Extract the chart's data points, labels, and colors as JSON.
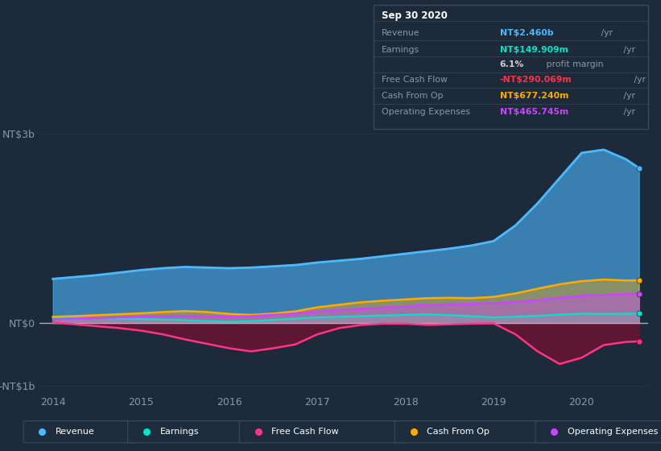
{
  "bg_color": "#1c2a3a",
  "plot_bg_color": "#1c2a3a",
  "x_years": [
    2014.0,
    2014.25,
    2014.5,
    2014.75,
    2015.0,
    2015.25,
    2015.5,
    2015.75,
    2016.0,
    2016.25,
    2016.5,
    2016.75,
    2017.0,
    2017.25,
    2017.5,
    2017.75,
    2018.0,
    2018.25,
    2018.5,
    2018.75,
    2019.0,
    2019.25,
    2019.5,
    2019.75,
    2020.0,
    2020.25,
    2020.5,
    2020.65
  ],
  "revenue": [
    700,
    730,
    760,
    800,
    840,
    870,
    890,
    880,
    870,
    880,
    900,
    920,
    960,
    990,
    1020,
    1060,
    1100,
    1140,
    1180,
    1230,
    1300,
    1550,
    1900,
    2300,
    2700,
    2750,
    2600,
    2460
  ],
  "earnings": [
    90,
    85,
    80,
    70,
    65,
    55,
    45,
    30,
    20,
    30,
    50,
    70,
    90,
    100,
    110,
    120,
    130,
    140,
    125,
    110,
    90,
    100,
    115,
    135,
    150,
    145,
    148,
    150
  ],
  "free_cash_flow": [
    10,
    -20,
    -50,
    -80,
    -120,
    -180,
    -260,
    -330,
    -400,
    -450,
    -400,
    -340,
    -180,
    -80,
    -30,
    -10,
    -10,
    -30,
    -20,
    -10,
    -5,
    -180,
    -450,
    -650,
    -550,
    -350,
    -300,
    -290
  ],
  "cash_from_op": [
    100,
    110,
    125,
    140,
    155,
    175,
    190,
    175,
    145,
    130,
    150,
    185,
    250,
    290,
    330,
    355,
    375,
    395,
    400,
    395,
    415,
    470,
    545,
    615,
    665,
    690,
    675,
    677
  ],
  "op_expenses": [
    60,
    70,
    80,
    90,
    100,
    110,
    115,
    110,
    100,
    110,
    130,
    150,
    185,
    205,
    225,
    245,
    265,
    285,
    295,
    305,
    315,
    335,
    365,
    400,
    430,
    445,
    460,
    466
  ],
  "colors": {
    "revenue": "#4db8ff",
    "earnings": "#00e5cc",
    "free_cash_flow": "#ff3388",
    "cash_from_op": "#ffaa00",
    "op_expenses": "#cc44ff"
  },
  "fcf_fill_color": "#7a1030",
  "ylim": [
    -1100,
    3300
  ],
  "xlim": [
    2013.85,
    2020.75
  ],
  "yticks": [
    -1000,
    0,
    3000
  ],
  "ytick_labels": [
    "-NT$1b",
    "NT$0",
    "NT$3b"
  ],
  "xticks": [
    2014,
    2015,
    2016,
    2017,
    2018,
    2019,
    2020
  ],
  "grid_color": "#263545",
  "zero_line_color": "#cccccc",
  "info_box_bg": "#0d1520",
  "info_box_border": "#3a4a5a",
  "info_title": "Sep 30 2020",
  "info_rows": [
    {
      "label": "Revenue",
      "value": "NT$2.460b",
      "suffix": " /yr",
      "value_color": "#4db8ff",
      "divider_above": false
    },
    {
      "label": "Earnings",
      "value": "NT$149.909m",
      "suffix": " /yr",
      "value_color": "#00e5cc",
      "divider_above": true
    },
    {
      "label": "",
      "value": "6.1%",
      "suffix": " profit margin",
      "value_color": "#cccccc",
      "divider_above": false
    },
    {
      "label": "Free Cash Flow",
      "value": "-NT$290.069m",
      "suffix": " /yr",
      "value_color": "#ff3344",
      "divider_above": true
    },
    {
      "label": "Cash From Op",
      "value": "NT$677.240m",
      "suffix": " /yr",
      "value_color": "#ffaa00",
      "divider_above": true
    },
    {
      "label": "Operating Expenses",
      "value": "NT$465.745m",
      "suffix": " /yr",
      "value_color": "#cc44ff",
      "divider_above": true
    }
  ],
  "legend_items": [
    {
      "label": "Revenue",
      "color": "#4db8ff"
    },
    {
      "label": "Earnings",
      "color": "#00e5cc"
    },
    {
      "label": "Free Cash Flow",
      "color": "#ff3388"
    },
    {
      "label": "Cash From Op",
      "color": "#ffaa00"
    },
    {
      "label": "Operating Expenses",
      "color": "#cc44ff"
    }
  ]
}
